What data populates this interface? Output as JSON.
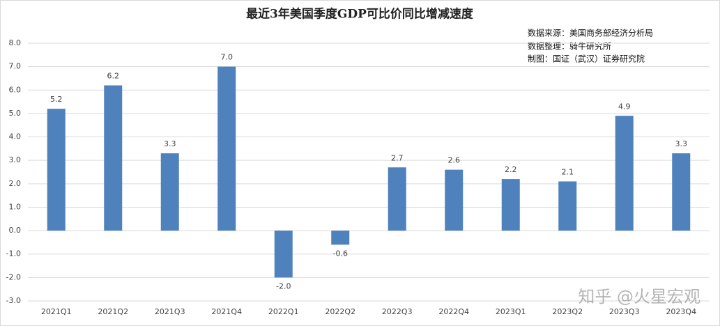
{
  "chart_data": {
    "type": "bar",
    "title": "最近3年美国季度GDP可比价同比增减速度",
    "annotations": [
      "数据来源：美国商务部经济分析局",
      "数据整理：骑牛研究所",
      "制图：国证（武汉）证券研究院"
    ],
    "watermark": "知乎 @火星宏观",
    "categories": [
      "2021Q1",
      "2021Q2",
      "2021Q3",
      "2021Q4",
      "2022Q1",
      "2022Q2",
      "2022Q3",
      "2022Q4",
      "2023Q1",
      "2023Q2",
      "2023Q3",
      "2023Q4"
    ],
    "values": [
      5.2,
      6.2,
      3.3,
      7.0,
      -2.0,
      -0.6,
      2.7,
      2.6,
      2.2,
      2.1,
      4.9,
      3.3
    ],
    "value_labels": [
      "5.2",
      "6.2",
      "3.3",
      "7.0",
      "-2.0",
      "-0.6",
      "2.7",
      "2.6",
      "2.2",
      "2.1",
      "4.9",
      "3.3"
    ],
    "color": "#4f81bd",
    "ylim": [
      -3,
      8
    ],
    "yticks": [
      {
        "value": -3,
        "label": "-3.0"
      },
      {
        "value": -2,
        "label": "-2.0"
      },
      {
        "value": -1,
        "label": "-1.0"
      },
      {
        "value": 0,
        "label": "0.0"
      },
      {
        "value": 1,
        "label": "1.0"
      },
      {
        "value": 2,
        "label": "2.0"
      },
      {
        "value": 3,
        "label": "3.0"
      },
      {
        "value": 4,
        "label": "4.0"
      },
      {
        "value": 5,
        "label": "5.0"
      },
      {
        "value": 6,
        "label": "6.0"
      },
      {
        "value": 7,
        "label": "7.0"
      },
      {
        "value": 8,
        "label": "8.0"
      }
    ],
    "grid": true
  }
}
